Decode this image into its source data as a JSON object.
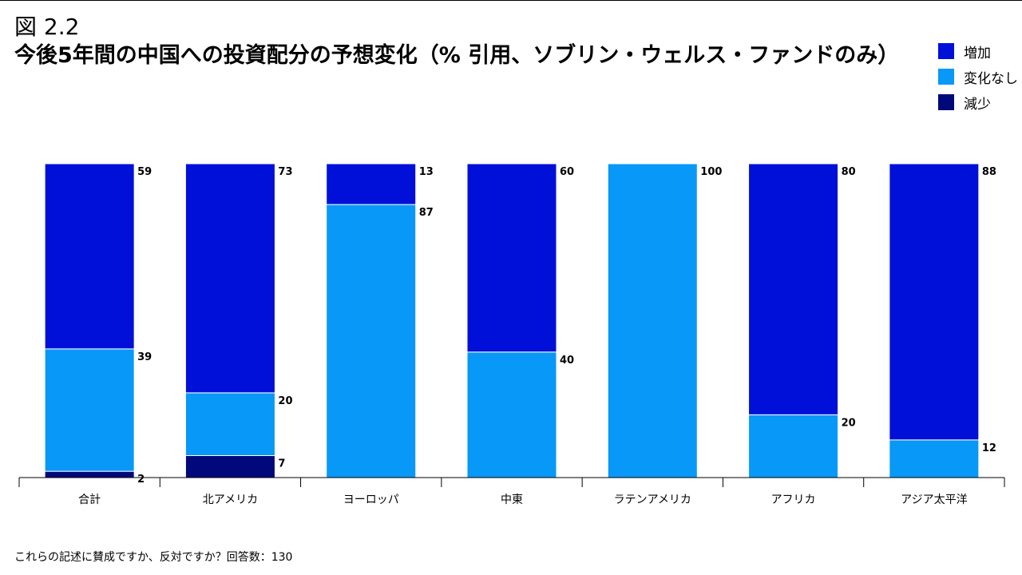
{
  "header": {
    "figure_label": "図 2.2",
    "title": "今後5年間の中国への投資配分の予想変化（% 引用、ソブリン・ウェルス・ファンドのみ）"
  },
  "footnote": "これらの記述に賛成ですか、反対ですか？回答数：130",
  "colors": {
    "increase": "#0010d8",
    "no_change": "#0898f8",
    "decrease": "#00087a",
    "axis": "#000000"
  },
  "chart_data": {
    "type": "bar",
    "stacked": true,
    "categories": [
      "合計",
      "北アメリカ",
      "ヨーロッパ",
      "中東",
      "ラテンアメリカ",
      "アフリカ",
      "アジア太平洋"
    ],
    "series": [
      {
        "name": "減少",
        "color_key": "decrease",
        "values": [
          2,
          7,
          0,
          0,
          0,
          0,
          0
        ]
      },
      {
        "name": "変化なし",
        "color_key": "no_change",
        "values": [
          39,
          20,
          87,
          40,
          100,
          20,
          12
        ]
      },
      {
        "name": "増加",
        "color_key": "increase",
        "values": [
          59,
          73,
          13,
          60,
          0,
          80,
          88
        ]
      }
    ],
    "legend": {
      "position": "top-right",
      "entries": [
        {
          "name": "増加",
          "color_key": "increase"
        },
        {
          "name": "変化なし",
          "color_key": "no_change"
        },
        {
          "name": "減少",
          "color_key": "decrease"
        }
      ]
    },
    "ylim": [
      0,
      100
    ],
    "title": "",
    "xlabel": "",
    "ylabel": "",
    "grid": false
  }
}
